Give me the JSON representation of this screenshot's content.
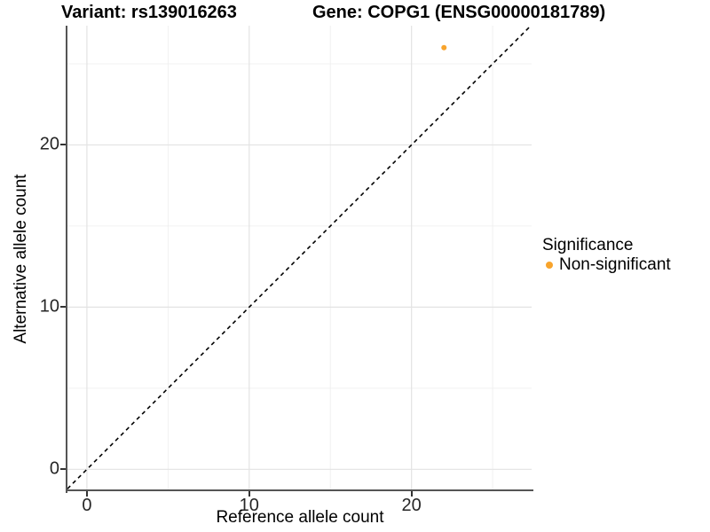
{
  "titles": {
    "variant": "Variant: rs139016263",
    "gene": "Gene: COPG1 (ENSG00000181789)"
  },
  "axes": {
    "x": {
      "label": "Reference allele count",
      "tick_labels": [
        "0",
        "10",
        "20"
      ]
    },
    "y": {
      "label": "Alternative allele count",
      "tick_labels": [
        "0",
        "10",
        "20"
      ]
    }
  },
  "legend": {
    "title": "Significance",
    "items": [
      {
        "label": "Non-significant",
        "color": "#F8A42C"
      }
    ]
  },
  "colors": {
    "point": "#F8A42C",
    "grid_major": "#e3e3e3",
    "grid_minor": "#f0f0f0",
    "axis_line": "#555555",
    "tick_mark": "#333333",
    "identity_line": "#000000",
    "background": "#ffffff"
  },
  "chart_data": {
    "type": "scatter",
    "title": "Variant: rs139016263 | Gene: COPG1 (ENSG00000181789)",
    "xlabel": "Reference allele count",
    "ylabel": "Alternative allele count",
    "xlim": [
      -1.2,
      27.4
    ],
    "ylim": [
      -1.35,
      27.35
    ],
    "x_ticks": [
      0,
      10,
      20
    ],
    "y_ticks": [
      0,
      10,
      20
    ],
    "x_minor_gridlines": [
      5,
      15,
      25
    ],
    "y_minor_gridlines": [
      5,
      15,
      25
    ],
    "grid": true,
    "legend_position": "right",
    "series": [
      {
        "name": "Non-significant",
        "color": "#F8A42C",
        "points": [
          {
            "x": 22,
            "y": 26
          }
        ]
      }
    ],
    "reference_line": {
      "type": "identity y=x",
      "style": "dashed",
      "color": "#000000"
    }
  }
}
